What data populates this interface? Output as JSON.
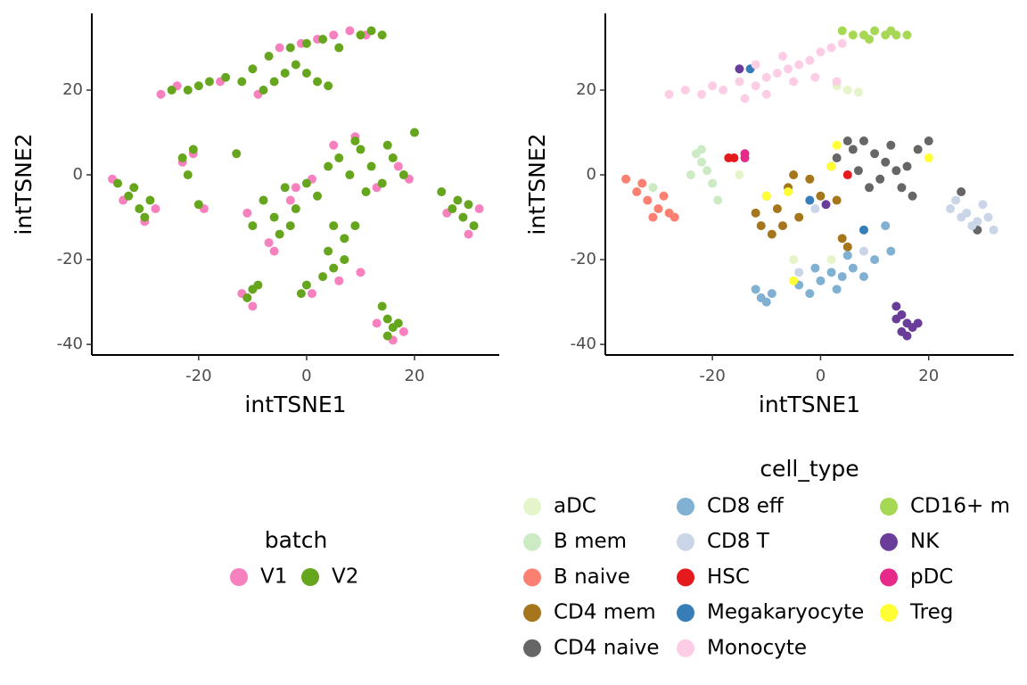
{
  "chart_data": [
    {
      "type": "scatter",
      "x_label": "intTSNE1",
      "y_label": "intTSNE2",
      "legend_title": "batch",
      "xlim": [
        -39.8,
        35.7
      ],
      "ylim": [
        -42.5,
        38.1
      ],
      "xticks": [
        -20,
        0,
        20
      ],
      "yticks": [
        -40,
        -20,
        0,
        20
      ],
      "grid": false,
      "series": [
        {
          "name": "V1",
          "color": "#f781bf",
          "x": [
            -27,
            -24,
            -16,
            -9,
            -5,
            2,
            5,
            8,
            11,
            -1,
            -36,
            -34,
            -30,
            -28,
            -23,
            -21,
            -11,
            -7,
            -3,
            1,
            5,
            9,
            13,
            17,
            19,
            26,
            30,
            32,
            -12,
            -10,
            1,
            6,
            10,
            13,
            16,
            18,
            -19,
            -6,
            -2
          ],
          "y": [
            19,
            21,
            22,
            19,
            30,
            32,
            33,
            34,
            33,
            31,
            -1,
            -6,
            -11,
            -8,
            3,
            5,
            -9,
            -16,
            -6,
            -1,
            7,
            9,
            -3,
            2,
            -1,
            -9,
            -14,
            -8,
            -28,
            -31,
            -28,
            -25,
            -23,
            -35,
            -39,
            -37,
            -8,
            -18,
            -3
          ]
        },
        {
          "name": "V2",
          "color": "#66a61e",
          "x": [
            -25,
            -22,
            -20,
            -18,
            -15,
            -12,
            -10,
            -8,
            -6,
            -4,
            -2,
            0,
            2,
            4,
            -3,
            0,
            3,
            6,
            10,
            14,
            12,
            -7,
            -35,
            -33,
            -31,
            -29,
            -30,
            -32,
            -23,
            -22,
            -21,
            -8,
            -6,
            -4,
            -2,
            -10,
            -5,
            0,
            2,
            4,
            6,
            8,
            10,
            12,
            14,
            16,
            18,
            11,
            9,
            15,
            25,
            27,
            29,
            31,
            28,
            30,
            -10,
            -11,
            -9,
            0,
            3,
            5,
            7,
            -1,
            4,
            9,
            5,
            14,
            15,
            16,
            17,
            15,
            -13,
            -20,
            -3,
            7,
            20
          ],
          "y": [
            20,
            20,
            21,
            22,
            23,
            22,
            25,
            20,
            22,
            24,
            26,
            24,
            22,
            21,
            30,
            31,
            32,
            30,
            33,
            33,
            34,
            28,
            -2,
            -5,
            -8,
            -6,
            -10,
            -3,
            4,
            0,
            6,
            -6,
            -10,
            -3,
            -8,
            -12,
            -14,
            -2,
            -5,
            2,
            4,
            0,
            6,
            2,
            -2,
            4,
            0,
            -4,
            8,
            7,
            -4,
            -8,
            -10,
            -12,
            -6,
            -7,
            -27,
            -29,
            -26,
            -26,
            -24,
            -22,
            -20,
            -28,
            -18,
            -12,
            -12,
            -31,
            -34,
            -36,
            -35,
            -38,
            5,
            -7,
            -12,
            -15,
            10
          ]
        }
      ]
    },
    {
      "type": "scatter",
      "x_label": "intTSNE1",
      "y_label": "intTSNE2",
      "legend_title": "cell_type",
      "xlim": [
        -39.8,
        35.7
      ],
      "ylim": [
        -42.5,
        38.1
      ],
      "xticks": [
        -20,
        0,
        20
      ],
      "yticks": [
        -40,
        -20,
        0,
        20
      ],
      "grid": false,
      "series": [
        {
          "name": "aDC",
          "color": "#e5f5c9",
          "x": [
            3,
            5,
            7,
            -15,
            2,
            -5
          ],
          "y": [
            21,
            20,
            19.5,
            0,
            -20,
            -20
          ]
        },
        {
          "name": "B mem",
          "color": "#ccebc5",
          "x": [
            -23,
            -22,
            -21,
            -20,
            -22,
            -19,
            -31,
            -24
          ],
          "y": [
            5,
            3,
            1,
            -2,
            6,
            -6,
            -3,
            0
          ]
        },
        {
          "name": "B naive",
          "color": "#fb8072",
          "x": [
            -36,
            -34,
            -32,
            -30,
            -28,
            -33,
            -29,
            -27,
            -31
          ],
          "y": [
            -1,
            -4,
            -6,
            -8,
            -9,
            -2,
            -5,
            -10,
            -10
          ]
        },
        {
          "name": "CD4 mem",
          "color": "#a6761d",
          "x": [
            -10,
            -8,
            -6,
            -4,
            -11,
            -9,
            -2,
            0,
            2,
            -5,
            -7,
            3,
            4,
            5,
            -12
          ],
          "y": [
            -5,
            -8,
            -3,
            -10,
            -12,
            -14,
            -1,
            -5,
            2,
            0,
            -12,
            -6,
            -15,
            -17,
            -9
          ]
        },
        {
          "name": "CD4 naive",
          "color": "#666666",
          "x": [
            3,
            6,
            8,
            10,
            12,
            14,
            16,
            18,
            11,
            7,
            9,
            13,
            15,
            20,
            26,
            29,
            17,
            5
          ],
          "y": [
            4,
            6,
            8,
            5,
            3,
            1,
            2,
            6,
            -1,
            1,
            -3,
            7,
            -3,
            8,
            -4,
            -13,
            -5,
            8
          ]
        },
        {
          "name": "CD8 eff",
          "color": "#80b1d3",
          "x": [
            -11,
            -12,
            -10,
            -9,
            -4,
            -2,
            0,
            2,
            4,
            6,
            8,
            3,
            -1,
            5,
            12,
            13,
            10
          ],
          "y": [
            -29,
            -27,
            -30,
            -28,
            -26,
            -28,
            -25,
            -23,
            -24,
            -22,
            -24,
            -27,
            -22,
            -19,
            -12,
            -18,
            -20
          ]
        },
        {
          "name": "CD8 T",
          "color": "#cbd5e8",
          "x": [
            25,
            27,
            29,
            31,
            26,
            28,
            30,
            32,
            24,
            -1,
            8,
            -4
          ],
          "y": [
            -6,
            -9,
            -11,
            -10,
            -10,
            -12,
            -7,
            -13,
            -8,
            -8,
            -18,
            -23
          ]
        },
        {
          "name": "HSC",
          "color": "#e41a1c",
          "x": [
            -17,
            -16,
            5
          ],
          "y": [
            4,
            4,
            0
          ]
        },
        {
          "name": "Megakaryocyte",
          "color": "#377eb8",
          "x": [
            -13,
            8,
            -2
          ],
          "y": [
            25,
            -13,
            -6
          ]
        },
        {
          "name": "Monocyte",
          "color": "#fccde5",
          "x": [
            -28,
            -25,
            -22,
            -20,
            -18,
            -15,
            -12,
            -10,
            -8,
            -6,
            -4,
            -2,
            0,
            2,
            4,
            -5,
            -10,
            -14,
            -1,
            3,
            -7,
            -12
          ],
          "y": [
            19,
            20,
            19,
            21,
            20,
            22,
            21,
            23,
            24,
            25,
            26,
            27,
            29,
            30,
            31,
            22,
            19,
            18,
            23,
            22,
            28,
            26
          ]
        },
        {
          "name": "CD16+ m",
          "color": "#a6d854",
          "x": [
            6,
            8,
            10,
            12,
            14,
            16,
            9,
            13,
            4
          ],
          "y": [
            33,
            33,
            34,
            33,
            33,
            33,
            32,
            34,
            34
          ]
        },
        {
          "name": "NK",
          "color": "#6a3d9a",
          "x": [
            14,
            15,
            16,
            17,
            15,
            16,
            18,
            14,
            -15,
            1
          ],
          "y": [
            -31,
            -33,
            -35,
            -36,
            -37,
            -38,
            -35,
            -34,
            25,
            -7
          ]
        },
        {
          "name": "pDC",
          "color": "#e7298a",
          "x": [
            -14,
            -14
          ],
          "y": [
            5,
            4
          ]
        },
        {
          "name": "Treg",
          "color": "#ffff33",
          "x": [
            -10,
            3,
            -5,
            20,
            2,
            -6
          ],
          "y": [
            -5,
            7,
            -25,
            4,
            2,
            -4
          ]
        }
      ]
    }
  ]
}
